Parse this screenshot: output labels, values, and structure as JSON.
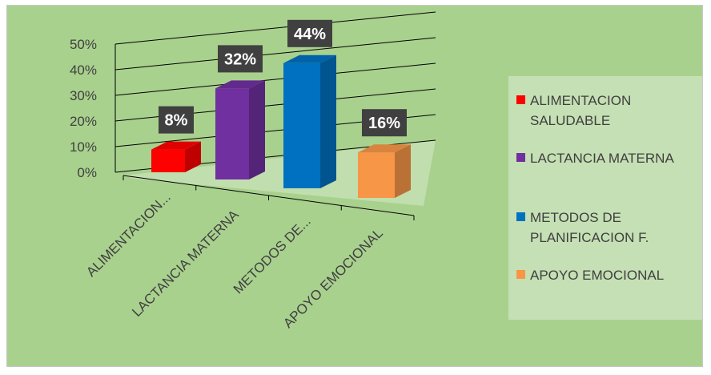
{
  "chart_data": {
    "type": "bar",
    "title": "",
    "xlabel": "",
    "ylabel": "",
    "categories": [
      "ALIMENTACION SALUDABLE",
      "LACTANCIA MATERNA",
      "METODOS DE PLANIFICACION F.",
      "APOYO EMOCIONAL"
    ],
    "category_tick_labels": [
      "ALIMENTACION...",
      "LACTANCIA MATERNA",
      "METODOS DE...",
      "APOYO EMOCIONAL"
    ],
    "values": [
      8,
      32,
      44,
      16
    ],
    "data_labels": [
      "8%",
      "32%",
      "44%",
      "16%"
    ],
    "colors": [
      "#ff0000",
      "#7030a0",
      "#0070c0",
      "#f79646"
    ],
    "yticks": [
      "0%",
      "10%",
      "20%",
      "30%",
      "40%",
      "50%"
    ],
    "ylim": [
      0,
      50
    ],
    "grid": true,
    "legend_position": "right",
    "style": "3d-column"
  },
  "legend": {
    "items": [
      {
        "label": "ALIMENTACION SALUDABLE",
        "color": "#ff0000"
      },
      {
        "label": "LACTANCIA MATERNA",
        "color": "#7030a0"
      },
      {
        "label": "METODOS DE PLANIFICACION F.",
        "color": "#0070c0"
      },
      {
        "label": "APOYO EMOCIONAL",
        "color": "#f79646"
      }
    ]
  }
}
